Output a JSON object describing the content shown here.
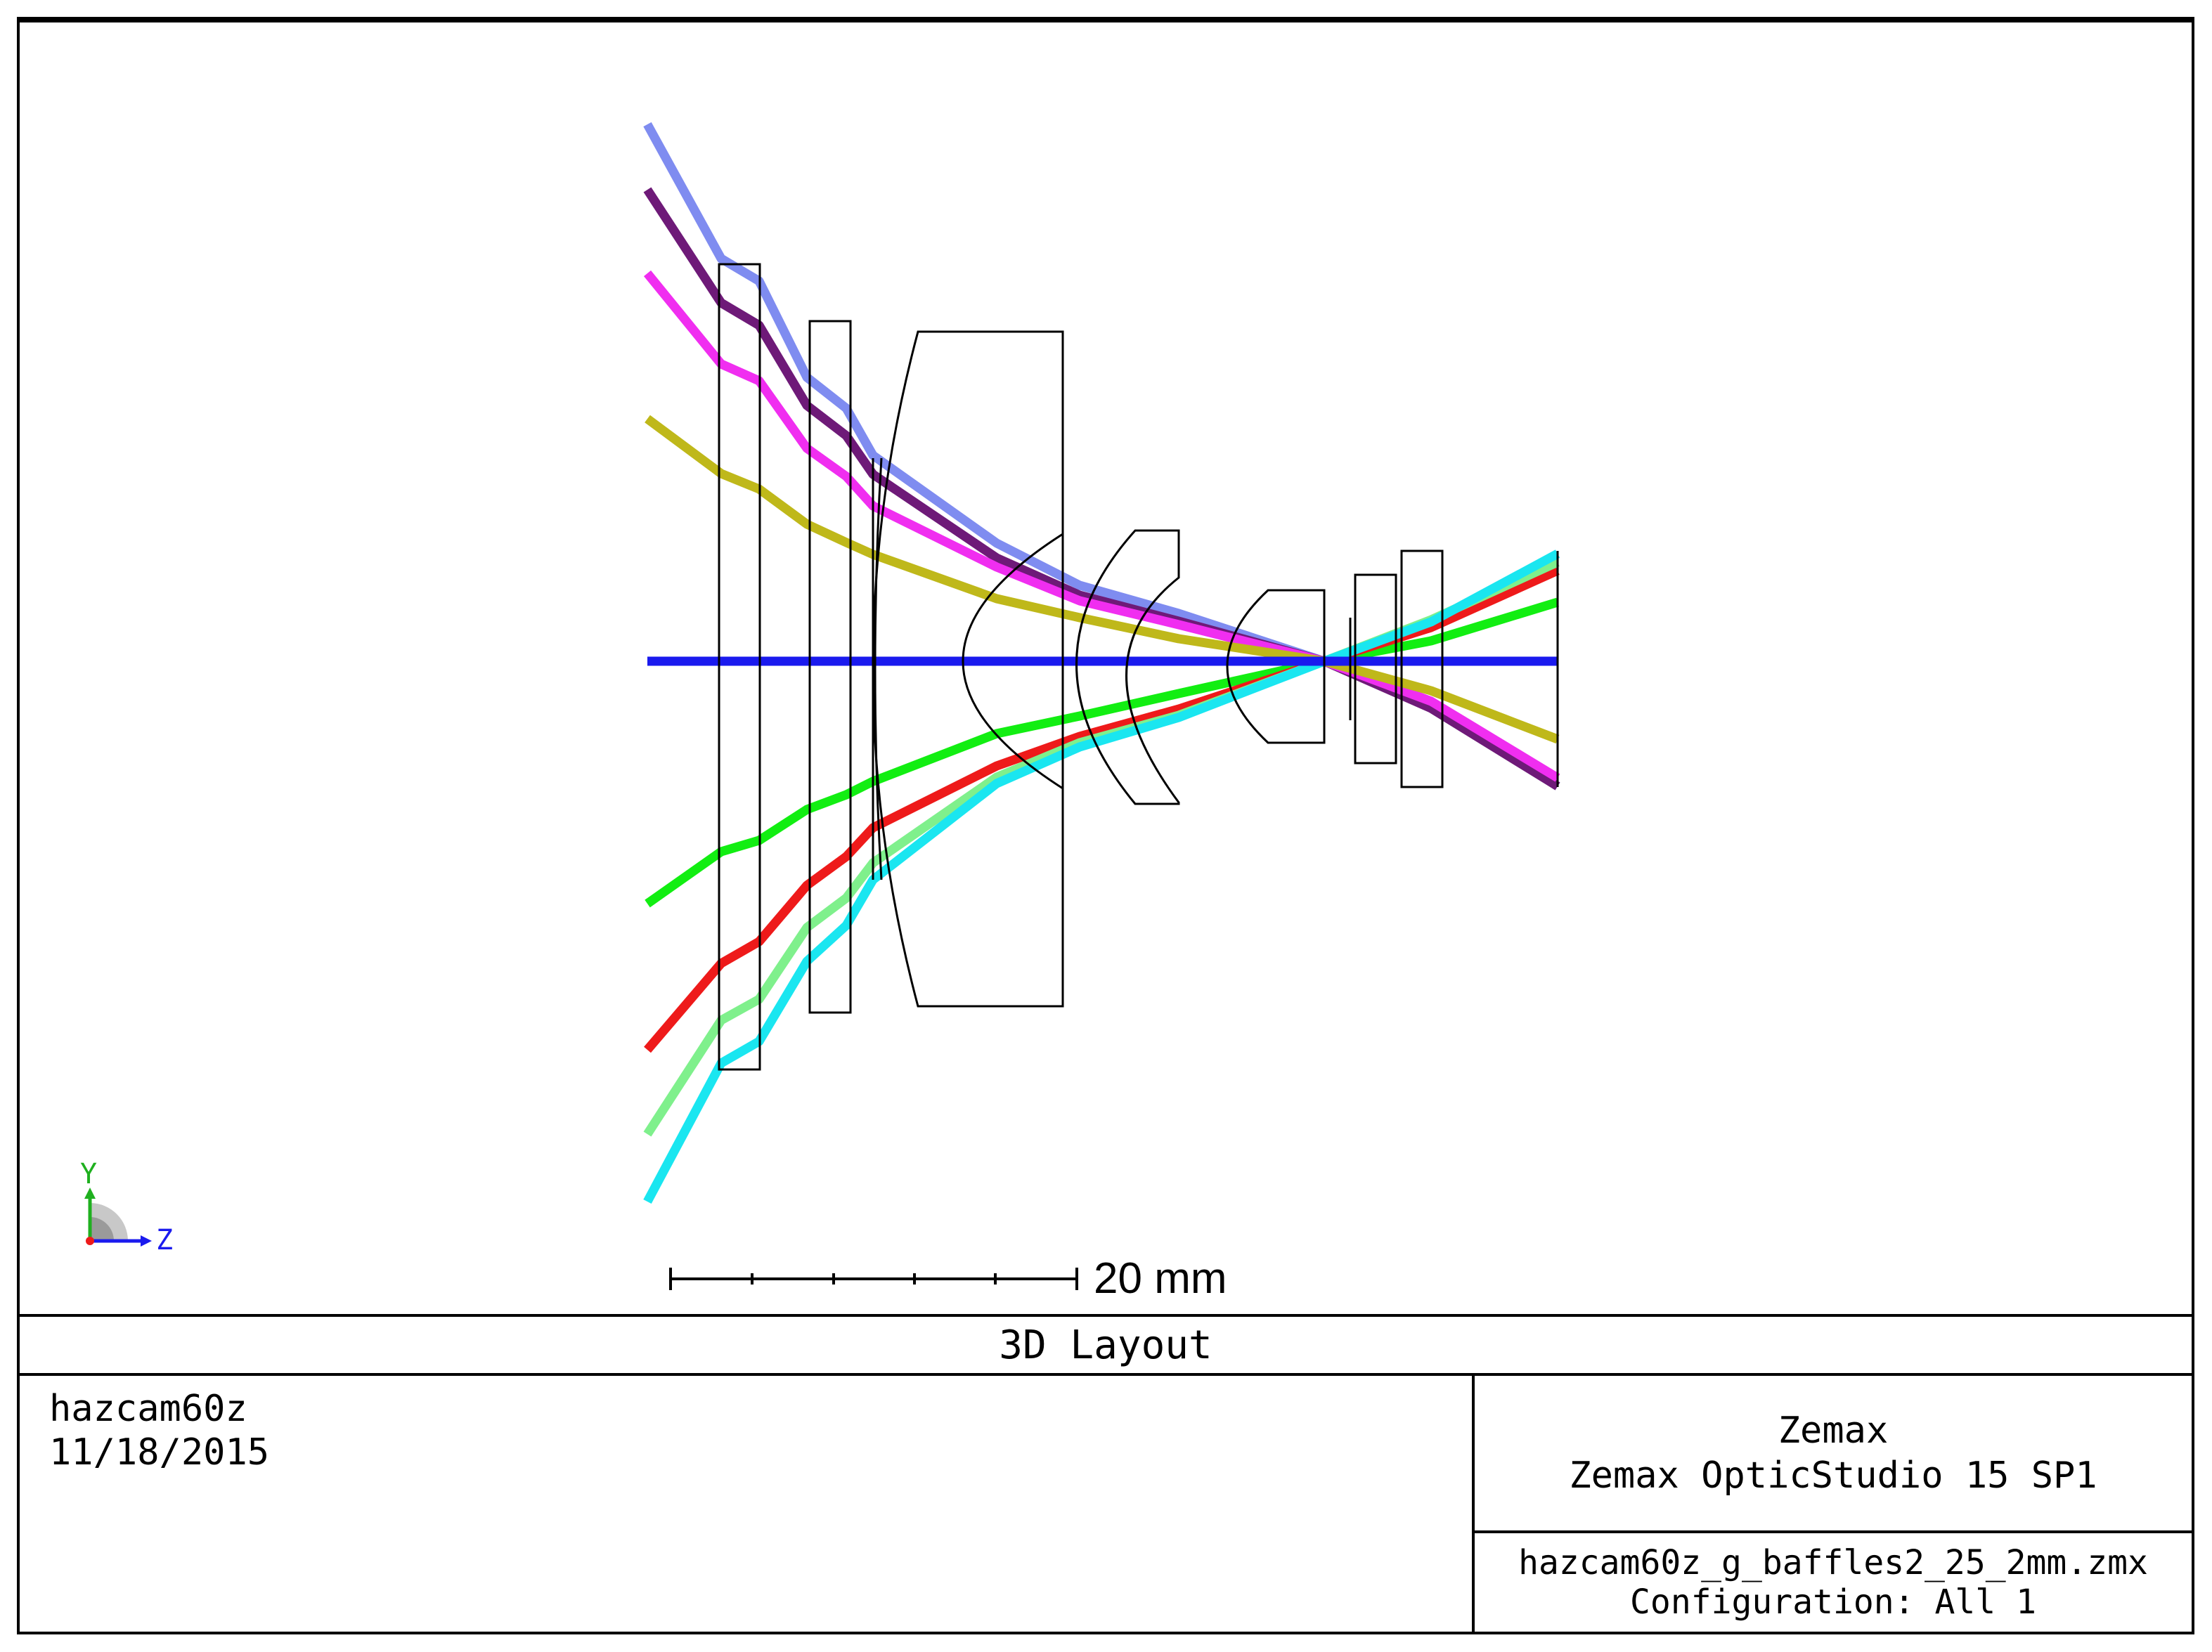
{
  "diagram": {
    "scale_bar_label": "20 mm",
    "axis_y_label": "Y",
    "axis_z_label": "Z",
    "colors": {
      "lens_outline": "#000000",
      "axis_ray": "#1a1aee",
      "ray_lightblue": "#7f8cf0",
      "ray_purple": "#6e1a78",
      "ray_magenta": "#f02ef0",
      "ray_olive": "#bfb81a",
      "ray_green": "#12ee12",
      "ray_red": "#ee1a1a",
      "ray_lightgreen": "#7ff08c",
      "ray_cyan": "#1ae6f0",
      "axis_y_color": "#1fb01f",
      "axis_z_color": "#1a1aee"
    }
  },
  "title_bar": {
    "title": "3D Layout"
  },
  "info_left": {
    "lens_name": "hazcam60z",
    "date": "11/18/2015"
  },
  "info_right": {
    "company": "Zemax",
    "product": "Zemax OpticStudio 15 SP1",
    "file": "hazcam60z_g_baffles2_25_2mm.zmx",
    "configuration": "Configuration: All 1"
  }
}
